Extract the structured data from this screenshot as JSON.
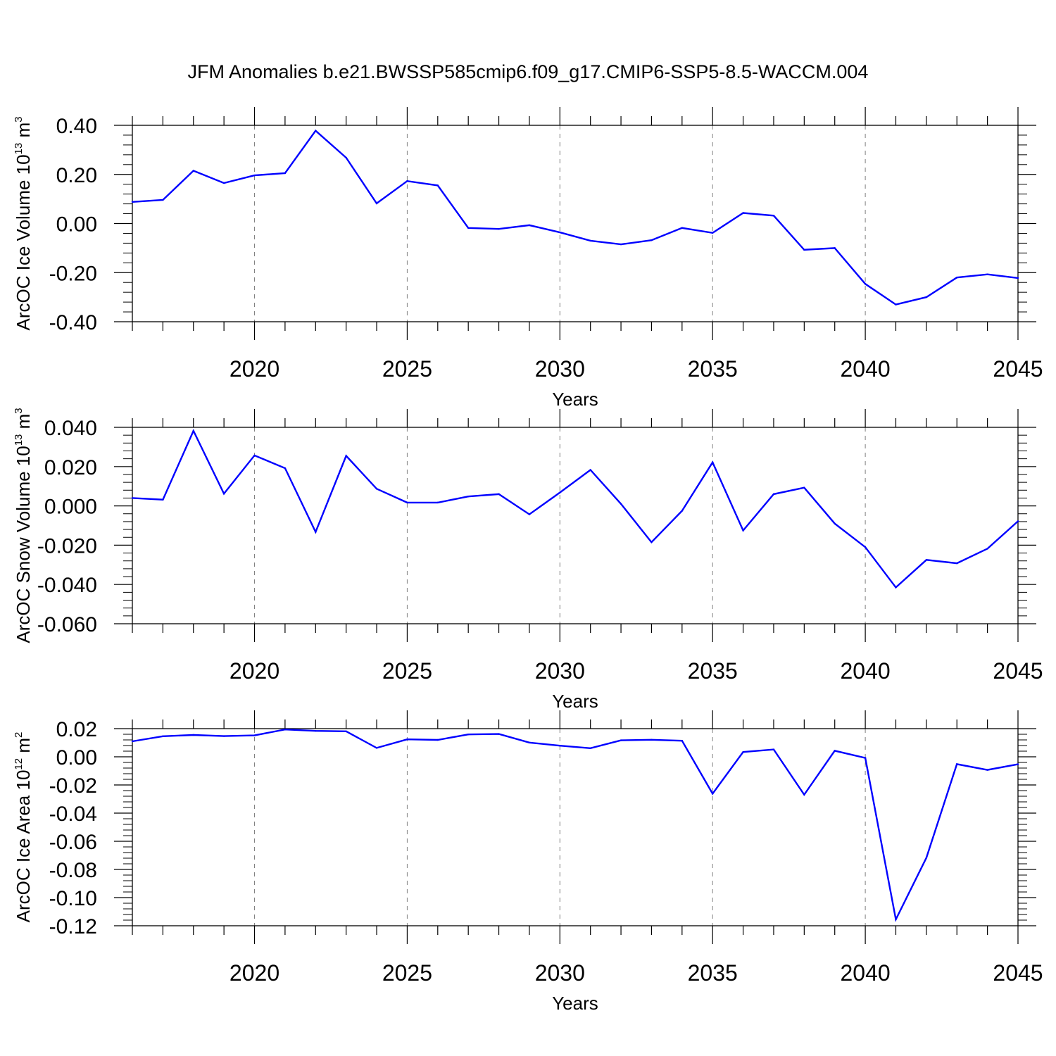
{
  "title": "JFM Anomalies b.e21.BWSSP585cmip6.f09_g17.CMIP6-SSP5-8.5-WACCM.004",
  "colors": {
    "series": "#0000ff",
    "axis": "#000000",
    "grid": "#808080"
  },
  "chart_data": [
    {
      "type": "line",
      "ylabel": "ArcOC Ice Volume 10",
      "ylabel_exp": "13",
      "ylabel_unit": " m",
      "ylabel_unit_exp": "3",
      "xlabel": "Years",
      "xlim": [
        2016,
        2045
      ],
      "ylim": [
        -0.4,
        0.4
      ],
      "x_ticks": [
        2020,
        2025,
        2030,
        2035,
        2040,
        2045
      ],
      "x_tick_labels": [
        "2020",
        "2025",
        "2030",
        "2035",
        "2040",
        "2045"
      ],
      "y_ticks": [
        -0.4,
        -0.2,
        0.0,
        0.2,
        0.4
      ],
      "y_tick_labels": [
        "-0.40",
        "-0.20",
        "0.00",
        "0.20",
        "0.40"
      ],
      "grid": "vertical dashed at major x ticks",
      "series": [
        {
          "x": [
            2016,
            2017,
            2018,
            2019,
            2020,
            2021,
            2022,
            2023,
            2024,
            2025,
            2026,
            2027,
            2028,
            2029,
            2030,
            2031,
            2032,
            2033,
            2034,
            2035,
            2036,
            2037,
            2038,
            2039,
            2040,
            2041,
            2042,
            2043,
            2044,
            2045
          ],
          "values": [
            0.088,
            0.096,
            0.215,
            0.165,
            0.196,
            0.205,
            0.378,
            0.268,
            0.082,
            0.173,
            0.155,
            -0.018,
            -0.022,
            -0.007,
            -0.036,
            -0.07,
            -0.085,
            -0.068,
            -0.018,
            -0.038,
            0.043,
            0.032,
            -0.107,
            -0.1,
            -0.246,
            -0.33,
            -0.3,
            -0.22,
            -0.207,
            -0.222
          ]
        }
      ]
    },
    {
      "type": "line",
      "ylabel": "ArcOC Snow Volume 10",
      "ylabel_exp": "13",
      "ylabel_unit": " m",
      "ylabel_unit_exp": "3",
      "xlabel": "Years",
      "xlim": [
        2016,
        2045
      ],
      "ylim": [
        -0.06,
        0.04
      ],
      "x_ticks": [
        2020,
        2025,
        2030,
        2035,
        2040,
        2045
      ],
      "x_tick_labels": [
        "2020",
        "2025",
        "2030",
        "2035",
        "2040",
        "2045"
      ],
      "y_ticks": [
        -0.06,
        -0.04,
        -0.02,
        0.0,
        0.02,
        0.04
      ],
      "y_tick_labels": [
        "-0.060",
        "-0.040",
        "-0.020",
        "0.000",
        "0.020",
        "0.040"
      ],
      "grid": "vertical dashed at major x ticks",
      "series": [
        {
          "x": [
            2016,
            2017,
            2018,
            2019,
            2020,
            2021,
            2022,
            2023,
            2024,
            2025,
            2026,
            2027,
            2028,
            2029,
            2030,
            2031,
            2032,
            2033,
            2034,
            2035,
            2036,
            2037,
            2038,
            2039,
            2040,
            2041,
            2042,
            2043,
            2044,
            2045
          ],
          "values": [
            0.004,
            0.0032,
            0.0382,
            0.0062,
            0.0257,
            0.0192,
            -0.0133,
            0.0255,
            0.0087,
            0.0017,
            0.0017,
            0.0048,
            0.006,
            -0.0043,
            0.0068,
            0.0183,
            0.001,
            -0.0185,
            -0.0025,
            0.0222,
            -0.0125,
            0.006,
            0.0093,
            -0.009,
            -0.021,
            -0.0415,
            -0.0275,
            -0.0292,
            -0.0218,
            -0.0078
          ]
        }
      ]
    },
    {
      "type": "line",
      "ylabel": "ArcOC Ice Area 10",
      "ylabel_exp": "12",
      "ylabel_unit": " m",
      "ylabel_unit_exp": "2",
      "xlabel": "Years",
      "xlim": [
        2016,
        2045
      ],
      "ylim": [
        -0.12,
        0.02
      ],
      "x_ticks": [
        2020,
        2025,
        2030,
        2035,
        2040,
        2045
      ],
      "x_tick_labels": [
        "2020",
        "2025",
        "2030",
        "2035",
        "2040",
        "2045"
      ],
      "y_ticks": [
        -0.12,
        -0.1,
        -0.08,
        -0.06,
        -0.04,
        -0.02,
        0.0,
        0.02
      ],
      "y_tick_labels": [
        "-0.12",
        "-0.10",
        "-0.08",
        "-0.06",
        "-0.04",
        "-0.02",
        "0.00",
        "0.02"
      ],
      "grid": "vertical dashed at major x ticks",
      "series": [
        {
          "x": [
            2016,
            2017,
            2018,
            2019,
            2020,
            2021,
            2022,
            2023,
            2024,
            2025,
            2026,
            2027,
            2028,
            2029,
            2030,
            2031,
            2032,
            2033,
            2034,
            2035,
            2036,
            2037,
            2038,
            2039,
            2040,
            2041,
            2042,
            2043,
            2044,
            2045
          ],
          "values": [
            0.011,
            0.0146,
            0.0155,
            0.0147,
            0.0152,
            0.0194,
            0.0184,
            0.0181,
            0.0063,
            0.0124,
            0.012,
            0.0159,
            0.0162,
            0.0101,
            0.0079,
            0.0061,
            0.0117,
            0.0121,
            0.0114,
            -0.0262,
            0.0034,
            0.0052,
            -0.0269,
            0.0043,
            -0.0008,
            -0.1155,
            -0.0717,
            -0.0052,
            -0.0093,
            -0.0053
          ]
        }
      ]
    }
  ]
}
